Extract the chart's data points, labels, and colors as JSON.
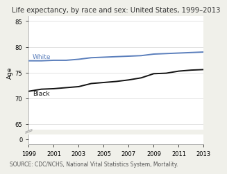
{
  "title": "Life expectancy, by race and sex: United States, 1999–2013",
  "ylabel": "Age",
  "source": "SOURCE: CDC/NCHS, National Vital Statistics System, Mortality.",
  "xlim": [
    1999,
    2013
  ],
  "white_years": [
    1999,
    2000,
    2001,
    2002,
    2003,
    2004,
    2005,
    2006,
    2007,
    2008,
    2009,
    2010,
    2011,
    2012,
    2013
  ],
  "white_values": [
    77.3,
    77.3,
    77.4,
    77.4,
    77.6,
    77.9,
    78.0,
    78.1,
    78.2,
    78.3,
    78.6,
    78.7,
    78.8,
    78.9,
    79.0
  ],
  "black_years": [
    1999,
    2000,
    2001,
    2002,
    2003,
    2004,
    2005,
    2006,
    2007,
    2008,
    2009,
    2010,
    2011,
    2012,
    2013
  ],
  "black_values": [
    71.4,
    71.8,
    71.9,
    72.1,
    72.3,
    72.9,
    73.1,
    73.3,
    73.6,
    74.0,
    74.8,
    74.9,
    75.3,
    75.5,
    75.6
  ],
  "white_color": "#5b7fbc",
  "black_color": "#111111",
  "white_label": "White",
  "black_label": "Black",
  "bg_color": "#f0f0ea",
  "plot_bg_color": "#ffffff",
  "title_fontsize": 7.2,
  "label_fontsize": 6.5,
  "tick_fontsize": 6.0,
  "source_fontsize": 5.5,
  "line_width": 1.4,
  "yticks_upper": [
    65,
    70,
    75,
    80,
    85
  ],
  "xticks": [
    1999,
    2001,
    2003,
    2005,
    2007,
    2009,
    2011,
    2013
  ]
}
